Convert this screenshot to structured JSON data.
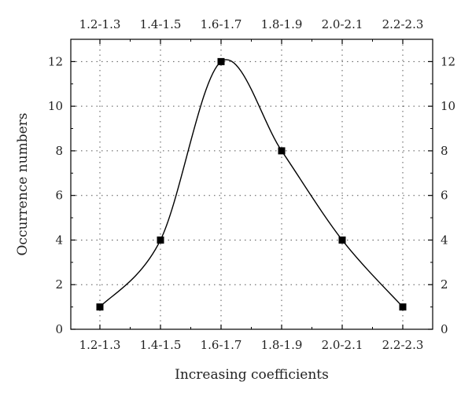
{
  "chart_data": {
    "type": "line",
    "categories": [
      "1.2-1.3",
      "1.4-1.5",
      "1.6-1.7",
      "1.8-1.9",
      "2.0-2.1",
      "2.2-2.3"
    ],
    "series": [
      {
        "values": [
          1,
          4,
          12,
          8,
          4,
          1
        ],
        "marker": "square",
        "smooth": true,
        "color": "#000000"
      }
    ],
    "xlabel": "Increasing coefficients",
    "ylabel": "Occurrence numbers",
    "ylim": [
      0,
      13
    ],
    "yticks": [
      0,
      2,
      4,
      6,
      8,
      10,
      12
    ],
    "grid": "dotted",
    "mirror_axes": true
  }
}
